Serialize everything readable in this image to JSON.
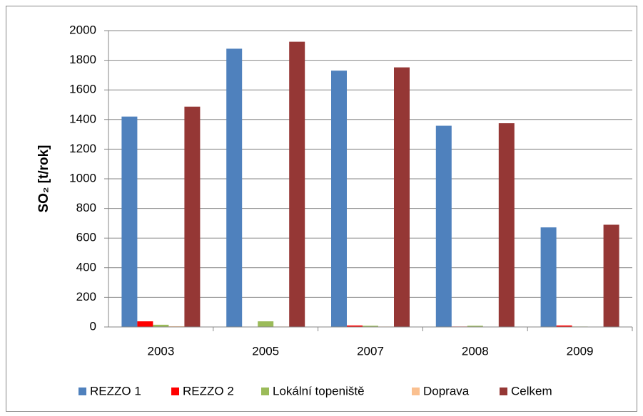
{
  "chart_data": {
    "type": "bar",
    "ylabel": "SO₂ [t/rok]",
    "categories": [
      "2003",
      "2005",
      "2007",
      "2008",
      "2009"
    ],
    "series": [
      {
        "name": "REZZO 1",
        "color": "#4f81bd",
        "values": [
          1420,
          1878,
          1730,
          1358,
          672
        ]
      },
      {
        "name": "REZZO 2",
        "color": "#ff0000",
        "values": [
          38,
          2,
          10,
          3,
          10
        ]
      },
      {
        "name": "Lokální topeniště",
        "color": "#9bbb59",
        "values": [
          15,
          38,
          8,
          8,
          3
        ]
      },
      {
        "name": "Doprava",
        "color": "#fac090",
        "values": [
          5,
          3,
          3,
          2,
          2
        ]
      },
      {
        "name": "Celkem",
        "color": "#953735",
        "values": [
          1487,
          1925,
          1752,
          1375,
          690
        ]
      }
    ],
    "ylim": [
      0,
      2000
    ],
    "yticks": [
      0,
      200,
      400,
      600,
      800,
      1000,
      1200,
      1400,
      1600,
      1800,
      2000
    ],
    "grid": true,
    "legend": "bottom"
  }
}
